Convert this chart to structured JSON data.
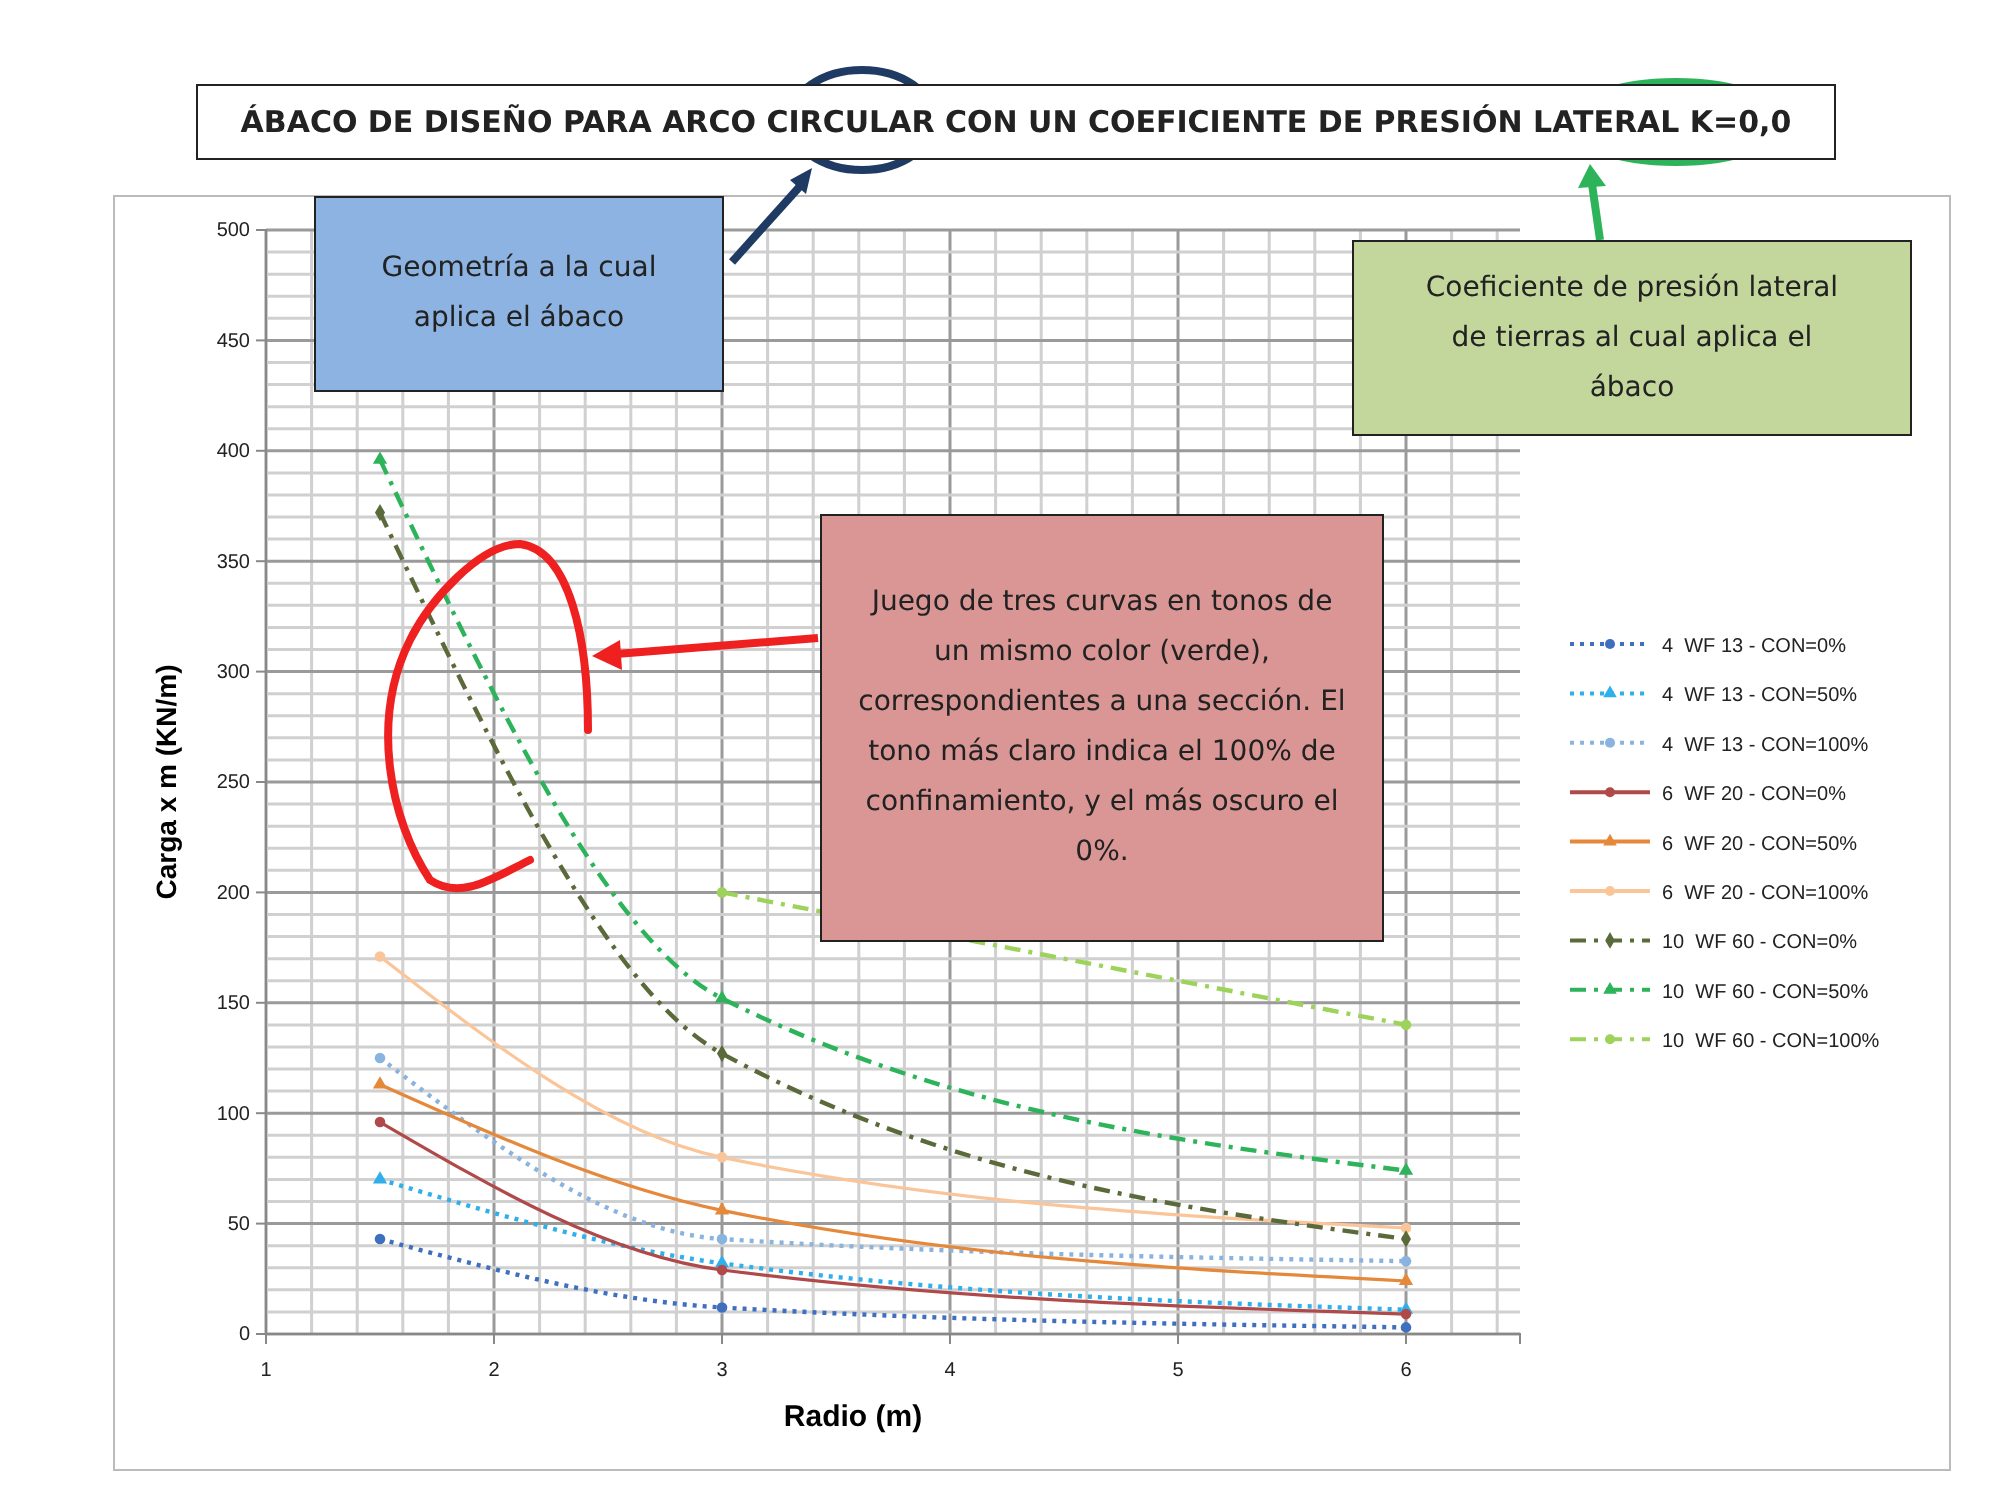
{
  "chart_data": {
    "type": "line",
    "title": "ÁBACO DE DISEÑO PARA ARCO CIRCULAR CON UN COEFICIENTE DE PRESIÓN LATERAL K=0,0",
    "xlabel": "Radio (m)",
    "ylabel": "Carga x m (KN/m)",
    "x": [
      1.5,
      3,
      6
    ],
    "xlim": [
      1,
      6.5
    ],
    "xticks": [
      1,
      2,
      3,
      4,
      5,
      6
    ],
    "ylim": [
      0,
      500
    ],
    "yticks": [
      0,
      50,
      100,
      150,
      200,
      250,
      300,
      350,
      400,
      450,
      500
    ],
    "grid": true,
    "legend": "right",
    "series": [
      {
        "name": "4  WF 13 - CON=0%",
        "color": "#3f6fbf",
        "values": [
          43,
          12,
          3
        ],
        "line_style": "dotted",
        "marker": "circle"
      },
      {
        "name": "4  WF 13 - CON=50%",
        "color": "#2fb0ec",
        "values": [
          70,
          32,
          11
        ],
        "line_style": "dotted",
        "marker": "triangle"
      },
      {
        "name": "4  WF 13 - CON=100%",
        "color": "#8ab4e0",
        "values": [
          125,
          43,
          33
        ],
        "line_style": "dotted",
        "marker": "circle"
      },
      {
        "name": "6  WF 20 - CON=0%",
        "color": "#b04a4a",
        "values": [
          96,
          29,
          9
        ],
        "line_style": "solid",
        "marker": "circle"
      },
      {
        "name": "6  WF 20 - CON=50%",
        "color": "#e6883a",
        "values": [
          113,
          56,
          24
        ],
        "line_style": "solid",
        "marker": "triangle"
      },
      {
        "name": "6  WF 20 - CON=100%",
        "color": "#fbc59a",
        "values": [
          171,
          80,
          48
        ],
        "line_style": "solid",
        "marker": "circle"
      },
      {
        "name": "10  WF 60 - CON=0%",
        "color": "#5a6a3a",
        "values": [
          372,
          127,
          43
        ],
        "line_style": "dashed",
        "marker": "diamond"
      },
      {
        "name": "10  WF 60 - CON=50%",
        "color": "#2db35a",
        "values": [
          396,
          152,
          74
        ],
        "line_style": "dashed",
        "marker": "triangle"
      },
      {
        "name": "10  WF 60 - CON=100%",
        "color": "#9dd35a",
        "values": [
          null,
          200,
          140
        ],
        "line_style": "dashed",
        "marker": "circle"
      }
    ],
    "annotations": [
      "Geometría a la cual aplica el ábaco",
      "Coeficiente de presión lateral de tierras al cual aplica el ábaco",
      "Juego de tres curvas en tonos de un mismo color (verde), correspondientes a una sección.  El tono más claro indica el 100% de confinamiento, y el más oscuro el 0%."
    ]
  }
}
